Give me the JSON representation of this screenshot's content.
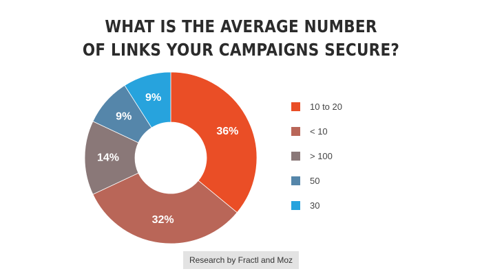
{
  "chart_data": {
    "type": "pie",
    "title_lines": [
      "WHAT IS THE AVERAGE NUMBER",
      "OF LINKS YOUR CAMPAIGNS SECURE?"
    ],
    "slices": [
      {
        "label": "10 to 20",
        "value": 36,
        "value_label": "36%",
        "color": "#ea4e26"
      },
      {
        "label": "< 10",
        "value": 32,
        "value_label": "32%",
        "color": "#b96658"
      },
      {
        "label": "> 100",
        "value": 14,
        "value_label": "14%",
        "color": "#8a7878"
      },
      {
        "label": "50",
        "value": 9,
        "value_label": "9%",
        "color": "#5586aa"
      },
      {
        "label": "30",
        "value": 9,
        "value_label": "9%",
        "color": "#27a3dd"
      }
    ],
    "donut": true,
    "legend_position": "right"
  },
  "footer": {
    "source": "Research by Fractl and Moz"
  }
}
